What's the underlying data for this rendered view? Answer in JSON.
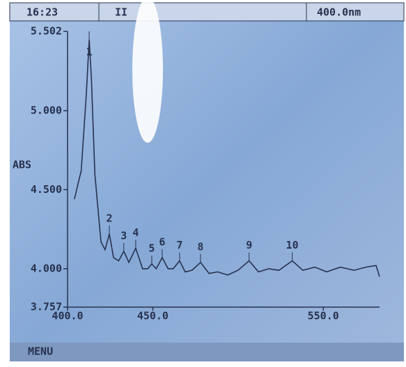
{
  "header": {
    "time": "16:23",
    "mode": "II",
    "wavelength": "400.0nm"
  },
  "chart_data": {
    "type": "line",
    "ylabel": "ABS",
    "x": [
      404,
      408,
      411,
      412.7,
      414,
      416,
      419.6,
      422,
      424.5,
      427,
      430,
      433,
      436,
      440,
      444,
      447,
      449.4,
      452,
      455.5,
      459,
      462,
      465.7,
      469,
      473,
      478,
      483,
      488,
      494,
      500,
      506.5,
      512,
      518,
      524,
      531.8,
      538,
      545,
      552,
      560,
      568,
      575,
      581,
      583
    ],
    "series": [
      {
        "name": "ABS",
        "color": "#27324f",
        "values": [
          4.44,
          4.62,
          5.1,
          5.45,
          5.2,
          4.6,
          4.17,
          4.12,
          4.22,
          4.07,
          4.05,
          4.11,
          4.04,
          4.13,
          4.0,
          4.0,
          4.03,
          4.0,
          4.07,
          4.0,
          4.0,
          4.05,
          3.98,
          3.99,
          4.04,
          3.97,
          3.98,
          3.96,
          3.99,
          4.05,
          3.98,
          4.0,
          3.99,
          4.05,
          3.99,
          4.01,
          3.98,
          4.01,
          3.99,
          4.01,
          4.02,
          3.95
        ]
      }
    ],
    "annotations": [
      {
        "text": "1",
        "x": 412.7,
        "y": 5.45
      },
      {
        "text": "2",
        "x": 424.5,
        "y": 4.22
      },
      {
        "text": "3",
        "x": 433,
        "y": 4.11
      },
      {
        "text": "4",
        "x": 440,
        "y": 4.13
      },
      {
        "text": "5",
        "x": 449.4,
        "y": 4.03
      },
      {
        "text": "6",
        "x": 455.5,
        "y": 4.07
      },
      {
        "text": "7",
        "x": 465.7,
        "y": 4.05
      },
      {
        "text": "8",
        "x": 478,
        "y": 4.04
      },
      {
        "text": "9",
        "x": 506.5,
        "y": 4.05
      },
      {
        "text": "10",
        "x": 531.8,
        "y": 4.05
      }
    ],
    "xlim": [
      400,
      583
    ],
    "xticks": [
      {
        "value": 400,
        "label": "400.0"
      },
      {
        "value": 450,
        "label": "450.0"
      },
      {
        "value": 550,
        "label": "550.0"
      }
    ],
    "ylim": [
      3.757,
      5.502
    ],
    "yticks": [
      3.757,
      {
        "value": 4,
        "label": "4.000"
      },
      {
        "value": 4.5,
        "label": "4.500"
      },
      {
        "value": 5,
        "label": "5.000"
      },
      5.502
    ]
  },
  "footer": {
    "menu": "MENU"
  }
}
